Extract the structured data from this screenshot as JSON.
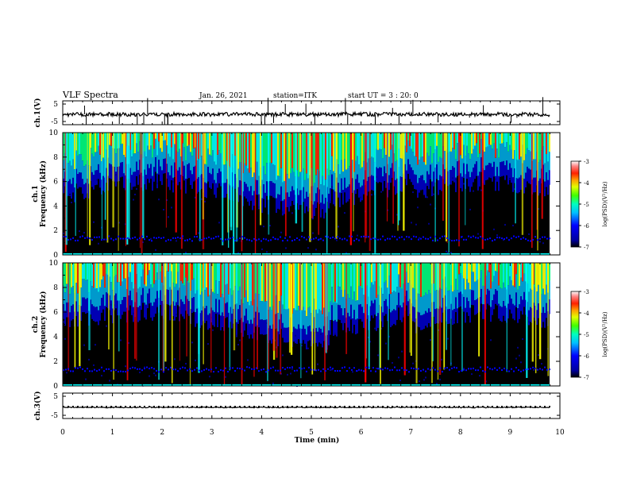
{
  "header": {
    "title": "VLF Spectra",
    "date": "Jan. 26, 2021",
    "station": "station=ITK",
    "start_time": "start UT =  3 : 20: 0"
  },
  "chart_data": [
    {
      "type": "line",
      "id": "ch1",
      "ylabel": "ch.1(V)",
      "ylim": [
        -5,
        5
      ],
      "yticks": [
        "5",
        "-5"
      ],
      "xlim": [
        0,
        10
      ],
      "baseline_value": 0
    },
    {
      "type": "heatmap",
      "id": "ch1-spec",
      "ylabel_top": "ch.1",
      "ylabel": "Frequency (kHz)",
      "ylim": [
        0,
        10
      ],
      "yticks": [
        "0",
        "2",
        "4",
        "6",
        "8",
        "10"
      ],
      "xlim": [
        0,
        10
      ],
      "colorbar": {
        "label": "log(PSD)(V²/Hz)",
        "range": [
          -7,
          -3
        ],
        "ticks": [
          "-3",
          "-4",
          "-5",
          "-6",
          "-7"
        ]
      }
    },
    {
      "type": "heatmap",
      "id": "ch2-spec",
      "ylabel_top": "ch.2",
      "ylabel": "Frequency (kHz)",
      "ylim": [
        0,
        10
      ],
      "yticks": [
        "0",
        "2",
        "4",
        "6",
        "8",
        "10"
      ],
      "xlim": [
        0,
        10
      ],
      "colorbar": {
        "label": "log(PSD)(V²/Hz)",
        "range": [
          -7,
          -3
        ],
        "ticks": [
          "-3",
          "-4",
          "-5",
          "-6",
          "-7"
        ]
      }
    },
    {
      "type": "line",
      "id": "ch3",
      "ylabel": "ch.3(V)",
      "ylim": [
        -5,
        5
      ],
      "yticks": [
        "5",
        "-5"
      ],
      "xlim": [
        0,
        10
      ],
      "baseline_value": 0
    }
  ],
  "x_axis": {
    "label": "Time (min)",
    "ticks": [
      "0",
      "1",
      "2",
      "3",
      "4",
      "5",
      "6",
      "7",
      "8",
      "9",
      "10"
    ]
  },
  "colors": {
    "frame": "#000000",
    "background": "#000000",
    "palette": [
      "#000000",
      "#00008b",
      "#0000ff",
      "#00bfff",
      "#00ffff",
      "#00ff80",
      "#40ff00",
      "#c0ff00",
      "#ffff00",
      "#ffa500",
      "#ff3000",
      "#ff0000",
      "#c00000",
      "#ffffff"
    ]
  }
}
